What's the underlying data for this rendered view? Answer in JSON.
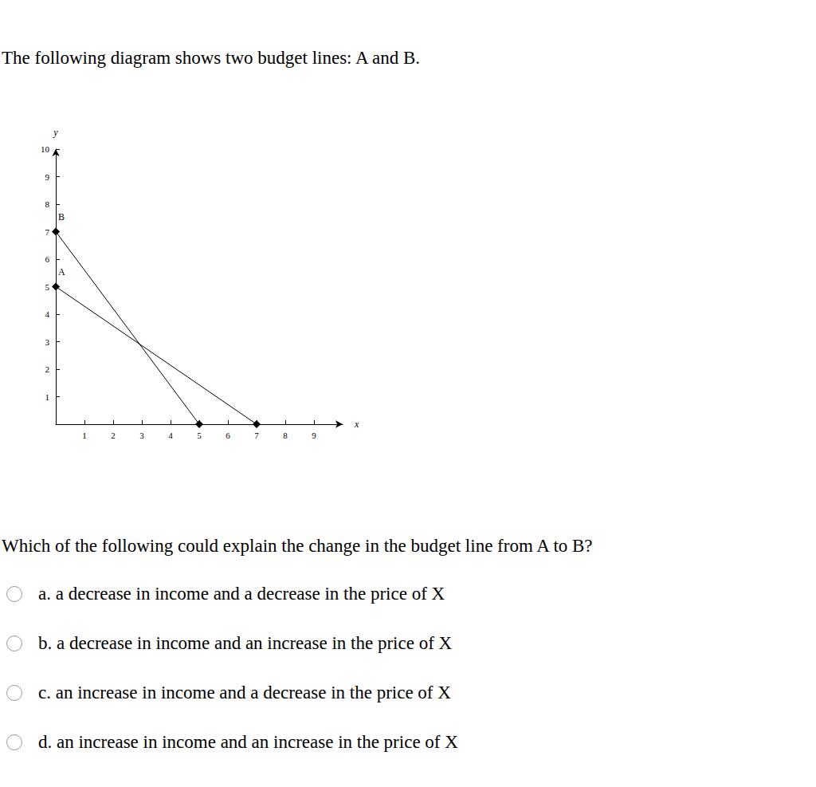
{
  "intro": "The following diagram shows two budget lines: A and B.",
  "chart_data": {
    "type": "line",
    "x_label": "x",
    "y_label": "y",
    "xlim": [
      0,
      10
    ],
    "ylim": [
      0,
      10
    ],
    "xticks": [
      1,
      2,
      3,
      4,
      5,
      6,
      7,
      8,
      9
    ],
    "yticks": [
      1,
      2,
      3,
      4,
      5,
      6,
      7,
      8,
      9,
      10
    ],
    "grid": false,
    "series": [
      {
        "name": "A",
        "color": "#000000",
        "marker": "diamond",
        "x": [
          0,
          7
        ],
        "values": [
          5,
          0
        ]
      },
      {
        "name": "B",
        "color": "#000000",
        "marker": "diamond",
        "x": [
          0,
          5
        ],
        "values": [
          7,
          0
        ]
      }
    ]
  },
  "question": "Which of the following could explain the change in the budget line from A to B?",
  "options": [
    "a. a decrease in income and a decrease in the price of X",
    "b. a decrease in income and an increase in the price of X",
    "c. an increase in income and a decrease in the price of X",
    "d. an increase in income and an increase in the price of X"
  ]
}
